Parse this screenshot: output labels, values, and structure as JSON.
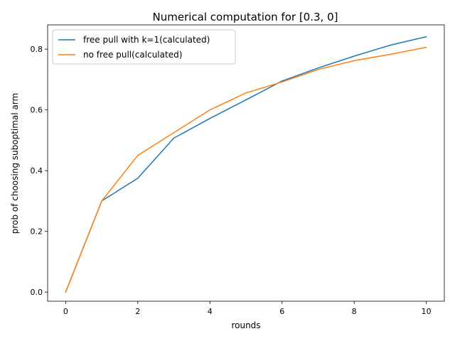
{
  "chart_data": {
    "type": "line",
    "title": "Numerical computation for [0.3, 0]",
    "xlabel": "rounds",
    "ylabel": "prob of choosing suboptimal arm",
    "xlim": [
      -0.5,
      10.5
    ],
    "ylim": [
      -0.03,
      0.88
    ],
    "xticks": [
      0,
      2,
      4,
      6,
      8,
      10
    ],
    "yticks": [
      0.0,
      0.2,
      0.4,
      0.6,
      0.8
    ],
    "ytick_labels": [
      "0.0",
      "0.2",
      "0.4",
      "0.6",
      "0.8"
    ],
    "grid": false,
    "legend_position": "upper-left",
    "x": [
      0,
      1,
      2,
      3,
      4,
      5,
      6,
      7,
      8,
      9,
      10
    ],
    "series": [
      {
        "name": "free pull with k=1(calculated)",
        "color": "#1f77b4",
        "values": [
          0.0,
          0.3,
          0.375,
          0.507,
          0.572,
          0.633,
          0.695,
          0.738,
          0.777,
          0.813,
          0.841
        ]
      },
      {
        "name": "no free pull(calculated)",
        "color": "#ff7f0e",
        "values": [
          0.0,
          0.3,
          0.45,
          0.525,
          0.6,
          0.656,
          0.692,
          0.733,
          0.762,
          0.783,
          0.806
        ]
      }
    ]
  }
}
